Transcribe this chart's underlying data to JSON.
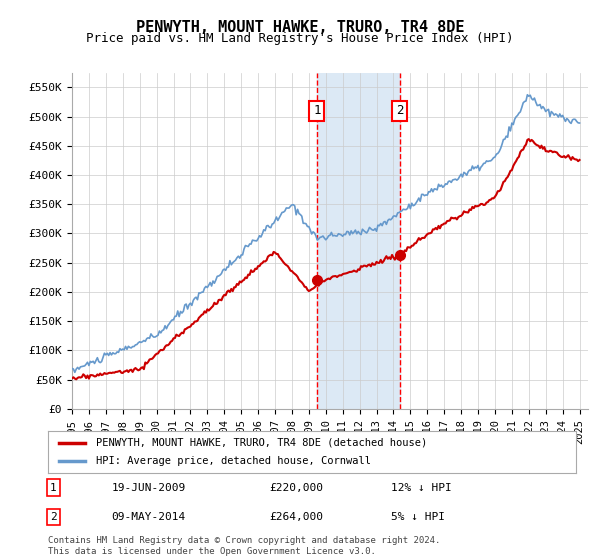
{
  "title": "PENWYTH, MOUNT HAWKE, TRURO, TR4 8DE",
  "subtitle": "Price paid vs. HM Land Registry's House Price Index (HPI)",
  "ylim": [
    0,
    575000
  ],
  "yticks": [
    0,
    50000,
    100000,
    150000,
    200000,
    250000,
    300000,
    350000,
    400000,
    450000,
    500000,
    550000
  ],
  "ytick_labels": [
    "£0",
    "£50K",
    "£100K",
    "£150K",
    "£200K",
    "£250K",
    "£300K",
    "£350K",
    "£400K",
    "£450K",
    "£500K",
    "£550K"
  ],
  "xstart_year": 1995,
  "xend_year": 2025,
  "marker1": {
    "year": 2009.47,
    "value": 220000,
    "label": "1",
    "date": "19-JUN-2009",
    "price": "£220,000",
    "note": "12% ↓ HPI"
  },
  "marker2": {
    "year": 2014.36,
    "value": 264000,
    "label": "2",
    "date": "09-MAY-2014",
    "price": "£264,000",
    "note": "5% ↓ HPI"
  },
  "legend_entry1": "PENWYTH, MOUNT HAWKE, TRURO, TR4 8DE (detached house)",
  "legend_entry2": "HPI: Average price, detached house, Cornwall",
  "hpi_color": "#6699cc",
  "sale_color": "#cc0000",
  "footnote": "Contains HM Land Registry data © Crown copyright and database right 2024.\nThis data is licensed under the Open Government Licence v3.0.",
  "background_color": "#ffffff",
  "grid_color": "#cccccc",
  "shading_color": "#dce9f5"
}
